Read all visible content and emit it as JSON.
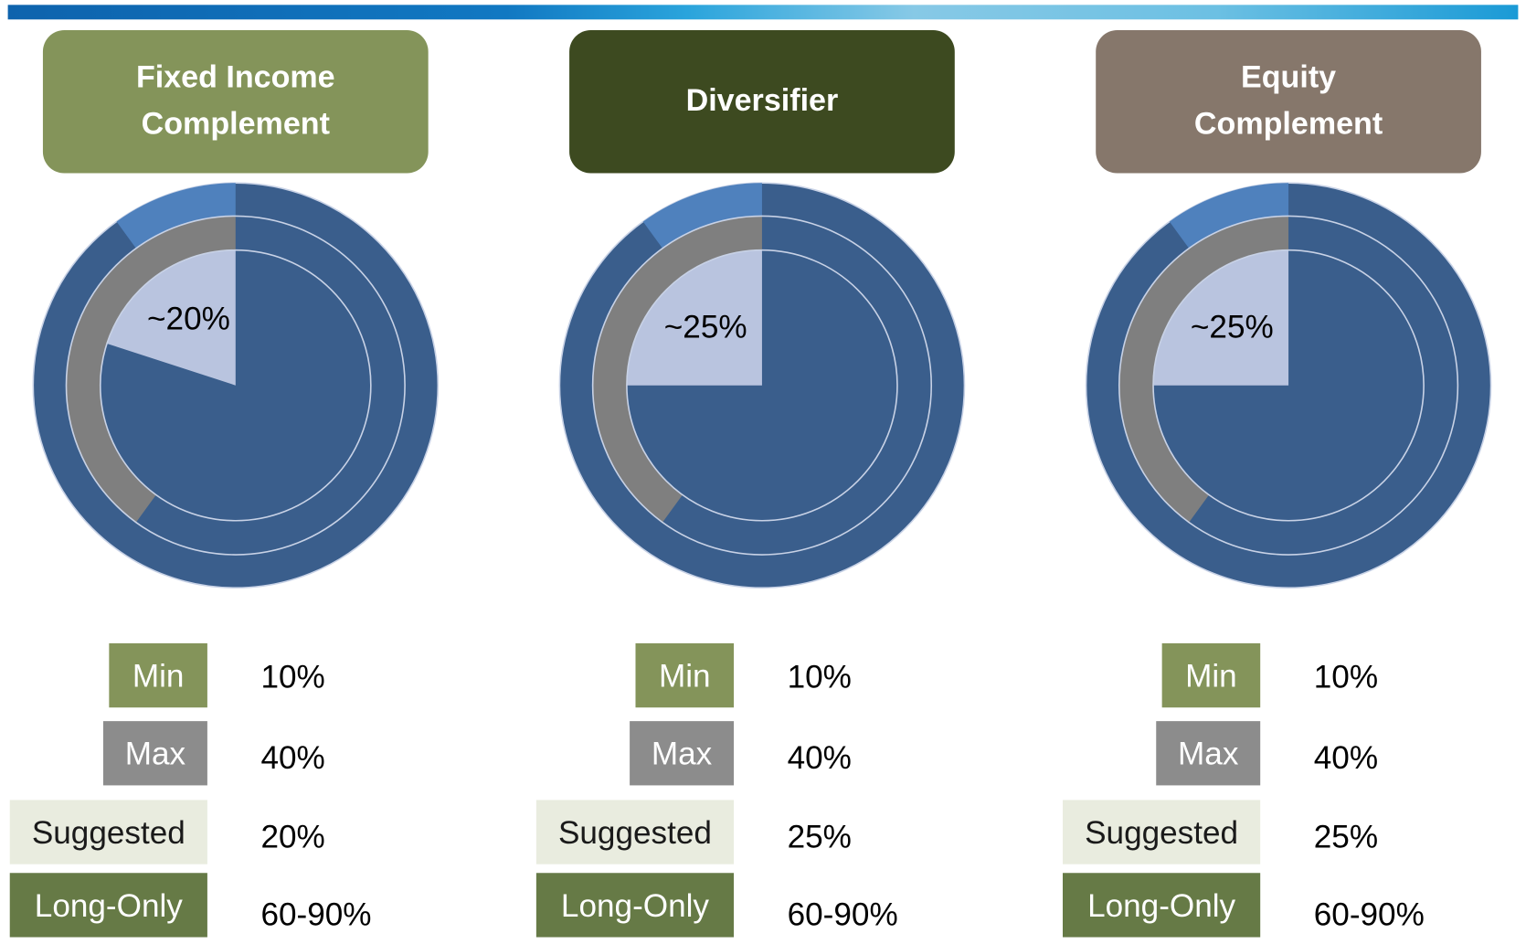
{
  "chart_data": [
    {
      "type": "pie",
      "title": [
        "Fixed Income",
        "Complement"
      ],
      "title_color": "#84945a",
      "annotation": "~20%",
      "rest_color": "#3a5e8c",
      "series": [
        {
          "name": "Min",
          "color": "#4f81bd",
          "legend_color": "#84945a",
          "values": [
            10
          ],
          "value_labels": [
            "10%"
          ]
        },
        {
          "name": "Max",
          "color": "#7f7f7f",
          "legend_color": "#8c8c8c",
          "values": [
            40
          ],
          "value_labels": [
            "40%"
          ]
        },
        {
          "name": "Suggested",
          "color": "#b9c4df",
          "legend_color": "#e9ecdf",
          "values": [
            20
          ],
          "value_labels": [
            "20%"
          ]
        }
      ],
      "range": {
        "name": "Long-Only",
        "label": "60-90%",
        "legend_color": "#667a46"
      }
    },
    {
      "type": "pie",
      "title": [
        "Diversifier"
      ],
      "title_color": "#3d4a20",
      "annotation": "~25%",
      "rest_color": "#3a5e8c",
      "series": [
        {
          "name": "Min",
          "color": "#4f81bd",
          "legend_color": "#84945a",
          "values": [
            10
          ],
          "value_labels": [
            "10%"
          ]
        },
        {
          "name": "Max",
          "color": "#7f7f7f",
          "legend_color": "#8c8c8c",
          "values": [
            40
          ],
          "value_labels": [
            "40%"
          ]
        },
        {
          "name": "Suggested",
          "color": "#b9c4df",
          "legend_color": "#e9ecdf",
          "values": [
            25
          ],
          "value_labels": [
            "25%"
          ]
        }
      ],
      "range": {
        "name": "Long-Only",
        "label": "60-90%",
        "legend_color": "#667a46"
      }
    },
    {
      "type": "pie",
      "title": [
        "Equity",
        "Complement"
      ],
      "title_color": "#86776b",
      "annotation": "~25%",
      "rest_color": "#3a5e8c",
      "series": [
        {
          "name": "Min",
          "color": "#4f81bd",
          "legend_color": "#84945a",
          "values": [
            10
          ],
          "value_labels": [
            "10%"
          ]
        },
        {
          "name": "Max",
          "color": "#7f7f7f",
          "legend_color": "#8c8c8c",
          "values": [
            40
          ],
          "value_labels": [
            "40%"
          ]
        },
        {
          "name": "Suggested",
          "color": "#b9c4df",
          "legend_color": "#e9ecdf",
          "values": [
            25
          ],
          "value_labels": [
            "25%"
          ]
        }
      ],
      "range": {
        "name": "Long-Only",
        "label": "60-90%",
        "legend_color": "#667a46"
      }
    }
  ]
}
